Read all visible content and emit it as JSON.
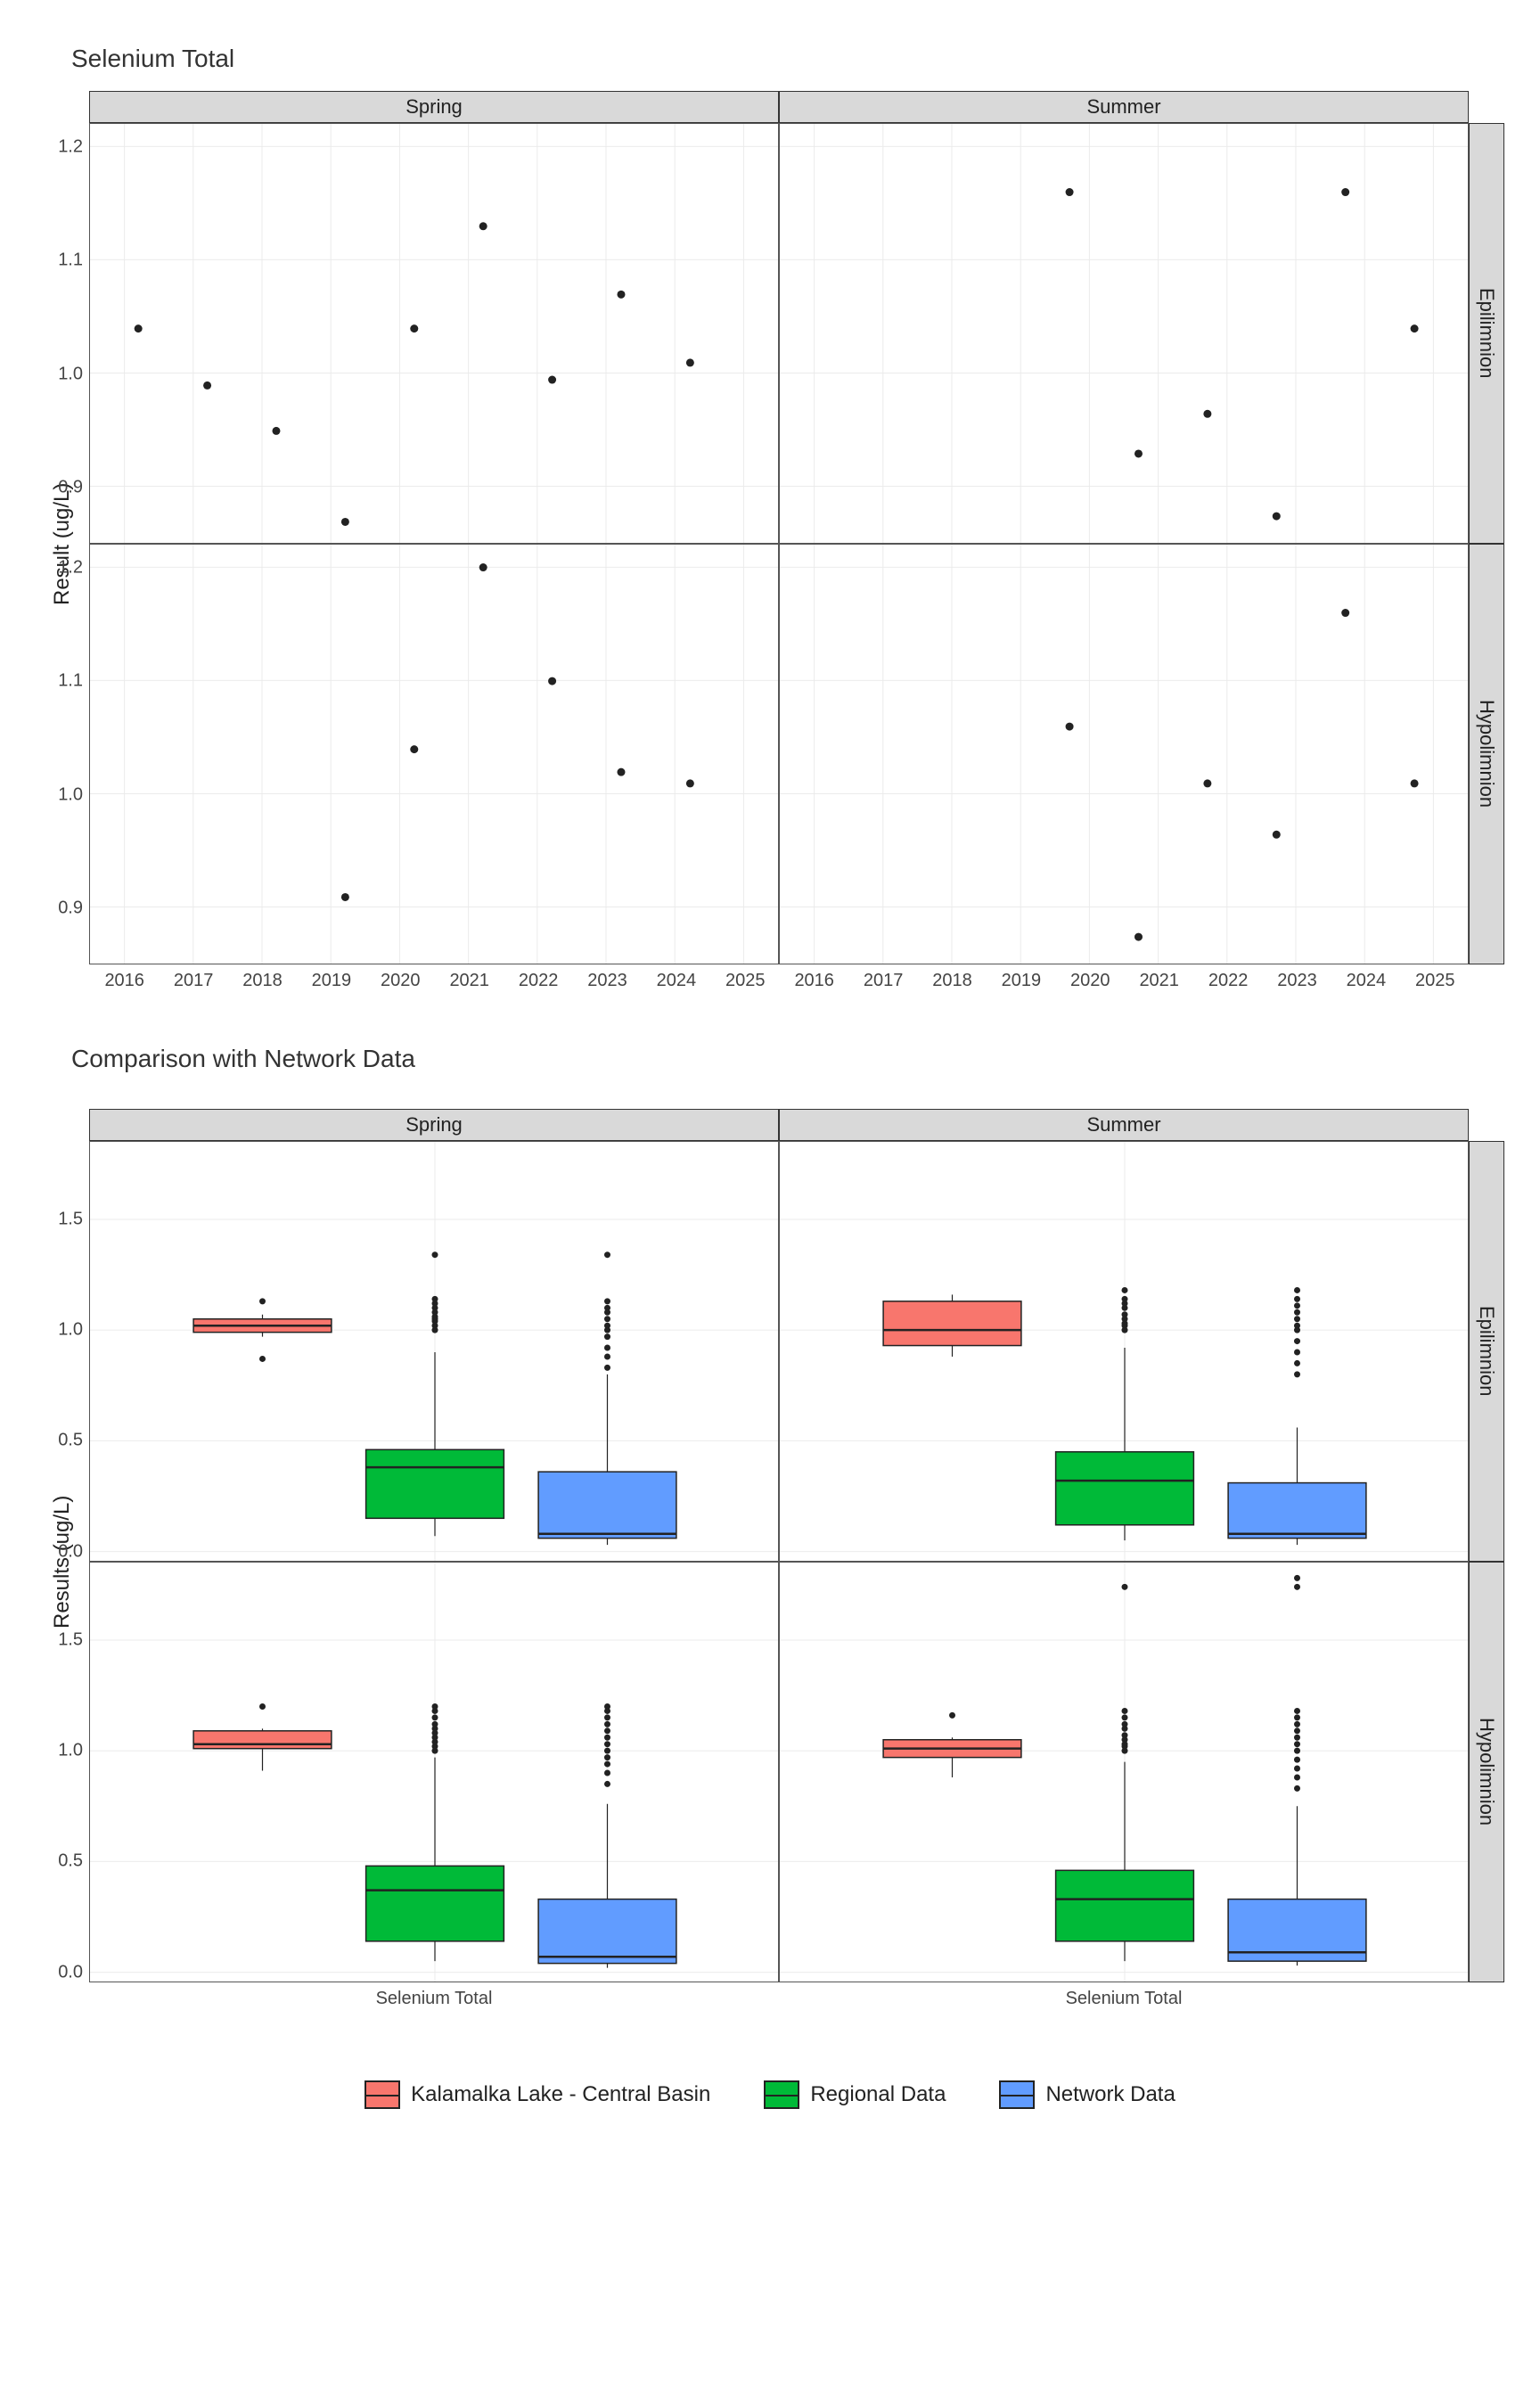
{
  "scatter_chart": {
    "title": "Selenium Total",
    "ylabel": "Result (ug/L)",
    "col_facets": [
      "Spring",
      "Summer"
    ],
    "row_facets": [
      "Epilimnion",
      "Hypolimnion"
    ],
    "xlim": [
      2015.5,
      2025.5
    ],
    "ylim": [
      0.85,
      1.22
    ],
    "x_ticks": [
      2016,
      2017,
      2018,
      2019,
      2020,
      2021,
      2022,
      2023,
      2024,
      2025
    ],
    "y_ticks": [
      0.9,
      1.0,
      1.1,
      1.2
    ],
    "point_color": "#222222",
    "point_radius": 4.5,
    "grid_color": "#ebebeb",
    "panels": {
      "Spring_Epilimnion": [
        {
          "x": 2016.2,
          "y": 1.04
        },
        {
          "x": 2017.2,
          "y": 0.99
        },
        {
          "x": 2018.2,
          "y": 0.95
        },
        {
          "x": 2019.2,
          "y": 0.87
        },
        {
          "x": 2020.2,
          "y": 1.04
        },
        {
          "x": 2021.2,
          "y": 1.13
        },
        {
          "x": 2022.2,
          "y": 0.995
        },
        {
          "x": 2023.2,
          "y": 1.07
        },
        {
          "x": 2024.2,
          "y": 1.01
        }
      ],
      "Summer_Epilimnion": [
        {
          "x": 2019.7,
          "y": 1.16
        },
        {
          "x": 2020.7,
          "y": 0.93
        },
        {
          "x": 2021.7,
          "y": 0.965
        },
        {
          "x": 2022.7,
          "y": 0.875
        },
        {
          "x": 2023.7,
          "y": 1.16
        },
        {
          "x": 2024.7,
          "y": 1.04
        }
      ],
      "Spring_Hypolimnion": [
        {
          "x": 2019.2,
          "y": 0.91
        },
        {
          "x": 2020.2,
          "y": 1.04
        },
        {
          "x": 2021.2,
          "y": 1.2
        },
        {
          "x": 2022.2,
          "y": 1.1
        },
        {
          "x": 2023.2,
          "y": 1.02
        },
        {
          "x": 2024.2,
          "y": 1.01
        }
      ],
      "Summer_Hypolimnion": [
        {
          "x": 2019.7,
          "y": 1.06
        },
        {
          "x": 2020.7,
          "y": 0.875
        },
        {
          "x": 2021.7,
          "y": 1.01
        },
        {
          "x": 2022.7,
          "y": 0.965
        },
        {
          "x": 2023.7,
          "y": 1.16
        },
        {
          "x": 2024.7,
          "y": 1.01
        }
      ]
    }
  },
  "box_chart": {
    "title": "Comparison with Network Data",
    "ylabel": "Results (ug/L)",
    "col_facets": [
      "Spring",
      "Summer"
    ],
    "row_facets": [
      "Epilimnion",
      "Hypolimnion"
    ],
    "ylim": [
      -0.05,
      1.85
    ],
    "y_ticks": [
      0.0,
      0.5,
      1.0,
      1.5
    ],
    "x_category": "Selenium Total",
    "series": [
      {
        "name": "Kalamalka Lake - Central Basin",
        "color": "#f8766d"
      },
      {
        "name": "Regional Data",
        "color": "#00ba38"
      },
      {
        "name": "Network Data",
        "color": "#619cff"
      }
    ],
    "box_width": 0.2,
    "x_positions": [
      0.25,
      0.5,
      0.75
    ],
    "panels": {
      "Spring_Epilimnion": [
        {
          "min": 0.97,
          "q1": 0.99,
          "med": 1.02,
          "q3": 1.05,
          "max": 1.07,
          "outliers": [
            0.87,
            1.13
          ]
        },
        {
          "min": 0.07,
          "q1": 0.15,
          "med": 0.38,
          "q3": 0.46,
          "max": 0.9,
          "outliers": [
            1.0,
            1.02,
            1.04,
            1.05,
            1.06,
            1.08,
            1.1,
            1.12,
            1.14,
            1.34
          ]
        },
        {
          "min": 0.03,
          "q1": 0.06,
          "med": 0.08,
          "q3": 0.36,
          "max": 0.8,
          "outliers": [
            0.83,
            0.88,
            0.92,
            0.97,
            1.0,
            1.02,
            1.05,
            1.08,
            1.1,
            1.13,
            1.34
          ]
        }
      ],
      "Summer_Epilimnion": [
        {
          "min": 0.88,
          "q1": 0.93,
          "med": 1.0,
          "q3": 1.13,
          "max": 1.16,
          "outliers": []
        },
        {
          "min": 0.05,
          "q1": 0.12,
          "med": 0.32,
          "q3": 0.45,
          "max": 0.92,
          "outliers": [
            1.0,
            1.02,
            1.03,
            1.05,
            1.07,
            1.1,
            1.12,
            1.14,
            1.18
          ]
        },
        {
          "min": 0.03,
          "q1": 0.06,
          "med": 0.08,
          "q3": 0.31,
          "max": 0.56,
          "outliers": [
            0.8,
            0.85,
            0.9,
            0.95,
            1.0,
            1.02,
            1.05,
            1.08,
            1.11,
            1.14,
            1.18
          ]
        }
      ],
      "Spring_Hypolimnion": [
        {
          "min": 0.91,
          "q1": 1.01,
          "med": 1.03,
          "q3": 1.09,
          "max": 1.1,
          "outliers": [
            1.2
          ]
        },
        {
          "min": 0.05,
          "q1": 0.14,
          "med": 0.37,
          "q3": 0.48,
          "max": 0.97,
          "outliers": [
            1.0,
            1.02,
            1.04,
            1.06,
            1.08,
            1.1,
            1.12,
            1.15,
            1.18,
            1.2
          ]
        },
        {
          "min": 0.02,
          "q1": 0.04,
          "med": 0.07,
          "q3": 0.33,
          "max": 0.76,
          "outliers": [
            0.85,
            0.9,
            0.94,
            0.97,
            1.0,
            1.03,
            1.06,
            1.09,
            1.12,
            1.15,
            1.18,
            1.2
          ]
        }
      ],
      "Summer_Hypolimnion": [
        {
          "min": 0.88,
          "q1": 0.97,
          "med": 1.01,
          "q3": 1.05,
          "max": 1.06,
          "outliers": [
            1.16
          ]
        },
        {
          "min": 0.05,
          "q1": 0.14,
          "med": 0.33,
          "q3": 0.46,
          "max": 0.95,
          "outliers": [
            1.0,
            1.02,
            1.03,
            1.05,
            1.07,
            1.1,
            1.12,
            1.15,
            1.18,
            1.74
          ]
        },
        {
          "min": 0.03,
          "q1": 0.05,
          "med": 0.09,
          "q3": 0.33,
          "max": 0.75,
          "outliers": [
            0.83,
            0.88,
            0.92,
            0.96,
            1.0,
            1.03,
            1.06,
            1.09,
            1.12,
            1.15,
            1.18,
            1.74,
            1.78
          ]
        }
      ]
    }
  },
  "legend_items": [
    {
      "label": "Kalamalka Lake - Central Basin",
      "color": "#f8766d"
    },
    {
      "label": "Regional Data",
      "color": "#00ba38"
    },
    {
      "label": "Network Data",
      "color": "#619cff"
    }
  ]
}
